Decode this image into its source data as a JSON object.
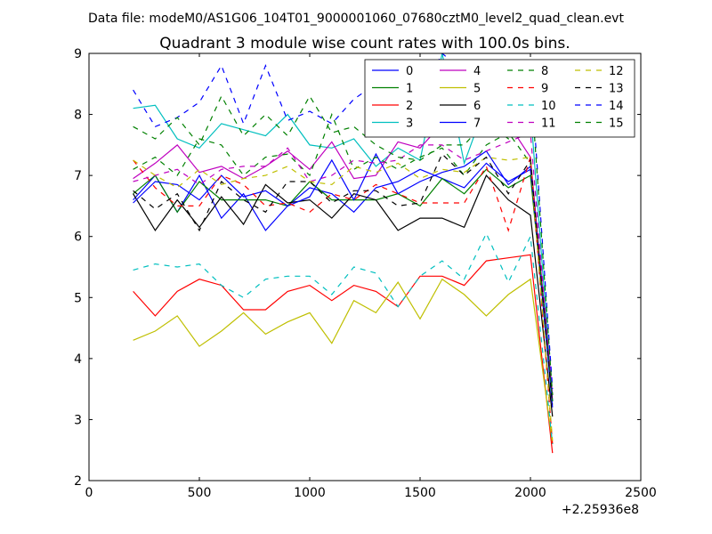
{
  "suptitle": "Data file: modeM0/AS1G06_104T01_9000001060_07680cztM0_level2_quad_clean.evt",
  "chart_data": {
    "type": "line",
    "title": "Quadrant 3 module wise count rates with 100.0s bins.",
    "xlabel": "",
    "ylabel": "",
    "x_offset_label": "+2.25936e8",
    "xlim": [
      0,
      2500
    ],
    "ylim": [
      2,
      9
    ],
    "xticks": [
      0,
      500,
      1000,
      1500,
      2000,
      2500
    ],
    "yticks": [
      2,
      3,
      4,
      5,
      6,
      7,
      8,
      9
    ],
    "grid": false,
    "legend_position": "top-right",
    "legend_columns": 4,
    "x": [
      200,
      300,
      400,
      500,
      600,
      700,
      800,
      900,
      1000,
      1100,
      1200,
      1300,
      1400,
      1500,
      1600,
      1700,
      1800,
      1900,
      2000,
      2100
    ],
    "series": [
      {
        "name": "0",
        "color": "#0000ff",
        "dash": "solid",
        "values": [
          6.6,
          7.0,
          6.4,
          7.0,
          6.3,
          6.7,
          6.1,
          6.5,
          6.8,
          6.7,
          6.4,
          6.8,
          6.9,
          7.1,
          6.95,
          6.8,
          7.2,
          6.9,
          7.1,
          3.2
        ]
      },
      {
        "name": "1",
        "color": "#008000",
        "dash": "solid",
        "values": [
          6.7,
          7.0,
          6.4,
          6.9,
          6.6,
          6.6,
          6.6,
          6.5,
          6.9,
          6.6,
          6.6,
          6.6,
          6.7,
          6.5,
          6.95,
          6.7,
          7.1,
          6.8,
          7.0,
          3.4
        ]
      },
      {
        "name": "2",
        "color": "#ff0000",
        "dash": "solid",
        "values": [
          5.1,
          4.7,
          5.1,
          5.3,
          5.2,
          4.8,
          4.8,
          5.1,
          5.2,
          4.95,
          5.2,
          5.1,
          4.85,
          5.35,
          5.35,
          5.2,
          5.6,
          5.65,
          5.7,
          2.45
        ]
      },
      {
        "name": "3",
        "color": "#00bfbf",
        "dash": "solid",
        "values": [
          8.1,
          8.15,
          7.6,
          7.45,
          7.85,
          7.75,
          7.65,
          8.0,
          7.5,
          7.45,
          7.6,
          7.15,
          7.45,
          7.25,
          9.0,
          7.2,
          8.2,
          8.55,
          8.1,
          3.3
        ]
      },
      {
        "name": "4",
        "color": "#bf00bf",
        "dash": "solid",
        "values": [
          6.95,
          7.2,
          7.5,
          7.05,
          7.15,
          6.95,
          7.15,
          7.4,
          7.1,
          7.55,
          6.95,
          7.0,
          7.55,
          7.45,
          7.85,
          7.8,
          7.85,
          7.85,
          7.3,
          3.4
        ]
      },
      {
        "name": "5",
        "color": "#bfbf00",
        "dash": "solid",
        "values": [
          4.3,
          4.45,
          4.7,
          4.2,
          4.45,
          4.75,
          4.4,
          4.6,
          4.75,
          4.25,
          4.95,
          4.75,
          5.25,
          4.65,
          5.3,
          5.05,
          4.7,
          5.05,
          5.3,
          2.6
        ]
      },
      {
        "name": "6",
        "color": "#000000",
        "dash": "solid",
        "values": [
          6.7,
          6.1,
          6.6,
          6.15,
          6.65,
          6.2,
          6.85,
          6.55,
          6.6,
          6.3,
          6.7,
          6.6,
          6.1,
          6.3,
          6.3,
          6.15,
          7.0,
          6.6,
          6.35,
          3.05
        ]
      },
      {
        "name": "7",
        "color": "#0000ff",
        "dash": "solid",
        "values": [
          6.55,
          6.9,
          6.85,
          6.6,
          7.0,
          6.65,
          6.75,
          6.5,
          6.65,
          7.25,
          6.6,
          7.35,
          6.7,
          6.9,
          7.05,
          7.15,
          7.4,
          6.85,
          7.15,
          3.3
        ]
      },
      {
        "name": "8",
        "color": "#008000",
        "dash": "dashed",
        "values": [
          7.1,
          7.3,
          7.0,
          7.6,
          7.5,
          7.0,
          7.3,
          7.35,
          7.0,
          8.0,
          7.1,
          7.3,
          7.1,
          7.3,
          7.45,
          7.0,
          7.5,
          7.7,
          7.2,
          3.3
        ]
      },
      {
        "name": "9",
        "color": "#ff0000",
        "dash": "dashed",
        "values": [
          7.25,
          6.8,
          6.5,
          6.5,
          7.0,
          6.85,
          6.5,
          6.55,
          6.4,
          6.7,
          6.6,
          6.85,
          6.7,
          6.55,
          6.55,
          6.55,
          7.15,
          6.1,
          7.3,
          2.6
        ]
      },
      {
        "name": "10",
        "color": "#00bfbf",
        "dash": "dashed",
        "values": [
          5.45,
          5.55,
          5.5,
          5.55,
          5.2,
          5.0,
          5.3,
          5.35,
          5.35,
          5.05,
          5.5,
          5.4,
          4.85,
          5.35,
          5.6,
          5.3,
          6.05,
          5.25,
          6.0,
          2.6
        ]
      },
      {
        "name": "11",
        "color": "#bf00bf",
        "dash": "dashed",
        "values": [
          6.9,
          7.0,
          7.1,
          6.85,
          7.1,
          7.15,
          7.15,
          7.45,
          6.9,
          7.0,
          7.25,
          7.2,
          7.25,
          7.5,
          7.5,
          7.25,
          7.4,
          7.55,
          7.7,
          3.3
        ]
      },
      {
        "name": "12",
        "color": "#bfbf00",
        "dash": "dashed",
        "values": [
          7.25,
          7.0,
          6.8,
          7.1,
          6.85,
          6.95,
          7.0,
          7.15,
          6.9,
          6.85,
          7.15,
          7.05,
          7.2,
          6.95,
          7.1,
          7.05,
          7.3,
          7.25,
          7.3,
          2.65
        ]
      },
      {
        "name": "13",
        "color": "#000000",
        "dash": "dashed",
        "values": [
          6.75,
          6.45,
          6.7,
          6.1,
          6.9,
          6.6,
          6.4,
          6.9,
          6.9,
          6.55,
          6.75,
          6.75,
          6.5,
          6.55,
          7.35,
          7.0,
          7.3,
          6.7,
          7.25,
          3.25
        ]
      },
      {
        "name": "14",
        "color": "#0000ff",
        "dash": "dashed",
        "values": [
          8.4,
          7.8,
          7.95,
          8.2,
          8.8,
          7.85,
          8.8,
          7.9,
          8.05,
          7.85,
          8.25,
          8.5,
          8.1,
          8.3,
          9.0,
          8.7,
          8.4,
          8.6,
          8.75,
          3.5
        ]
      },
      {
        "name": "15",
        "color": "#008000",
        "dash": "dashed",
        "values": [
          7.8,
          7.6,
          7.95,
          7.5,
          8.3,
          7.65,
          8.0,
          7.65,
          8.3,
          7.7,
          7.8,
          7.5,
          7.3,
          7.25,
          7.5,
          7.5,
          7.9,
          7.6,
          8.6,
          3.4
        ]
      }
    ]
  }
}
